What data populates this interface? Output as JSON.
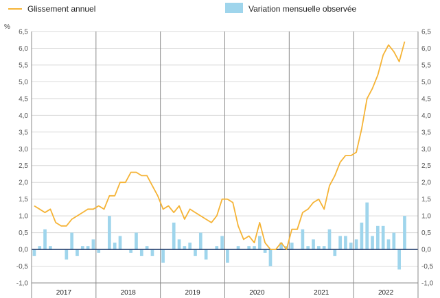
{
  "chart_data": {
    "type": "bar+line",
    "unit_label": "%",
    "colors": {
      "line": "#f5b335",
      "bars": "#9fd5ec",
      "zero_line": "#1f3b6b",
      "grid": "#d9d9d9",
      "axis": "#888888"
    },
    "legend": {
      "placement": "top",
      "line_label": "Glissement annuel",
      "bar_label": "Variation mensuelle observée"
    },
    "ylim": [
      -1.0,
      6.5
    ],
    "yticks": [
      "-1,0",
      "-0,5",
      "0,0",
      "0,5",
      "1,0",
      "1,5",
      "2,0",
      "2,5",
      "3,0",
      "3,5",
      "4,0",
      "4,5",
      "5,0",
      "5,5",
      "6,0",
      "6,5"
    ],
    "years": [
      "2017",
      "2018",
      "2019",
      "2020",
      "2021",
      "2022"
    ],
    "months_per_year": 12,
    "series": [
      {
        "name": "Glissement annuel",
        "kind": "line",
        "values": [
          1.3,
          1.2,
          1.1,
          1.2,
          0.8,
          0.7,
          0.7,
          0.9,
          1.0,
          1.1,
          1.2,
          1.2,
          1.3,
          1.2,
          1.6,
          1.6,
          2.0,
          2.0,
          2.3,
          2.3,
          2.2,
          2.2,
          1.9,
          1.6,
          1.2,
          1.3,
          1.1,
          1.3,
          0.9,
          1.2,
          1.1,
          1.0,
          0.9,
          0.8,
          1.0,
          1.5,
          1.5,
          1.4,
          0.7,
          0.3,
          0.4,
          0.2,
          0.8,
          0.2,
          0.0,
          0.0,
          0.2,
          0.0,
          0.6,
          0.6,
          1.1,
          1.2,
          1.4,
          1.5,
          1.2,
          1.9,
          2.2,
          2.6,
          2.8,
          2.8,
          2.9,
          3.6,
          4.5,
          4.8,
          5.2,
          5.8,
          6.1,
          5.9,
          5.6,
          6.2
        ]
      },
      {
        "name": "Variation mensuelle observée",
        "kind": "bar",
        "values": [
          -0.2,
          0.1,
          0.6,
          0.1,
          0.0,
          0.0,
          -0.3,
          0.5,
          -0.2,
          0.1,
          0.1,
          0.3,
          -0.1,
          0.0,
          1.0,
          0.2,
          0.4,
          0.0,
          -0.1,
          0.5,
          -0.2,
          0.1,
          -0.2,
          0.0,
          -0.4,
          0.0,
          0.8,
          0.3,
          0.1,
          0.2,
          -0.2,
          0.5,
          -0.3,
          0.0,
          0.1,
          0.4,
          -0.4,
          0.0,
          0.1,
          0.0,
          0.1,
          0.1,
          0.4,
          -0.1,
          -0.5,
          0.0,
          0.2,
          0.1,
          0.2,
          0.0,
          0.6,
          0.1,
          0.3,
          0.1,
          0.1,
          0.6,
          -0.2,
          0.4,
          0.4,
          0.2,
          0.3,
          0.8,
          1.4,
          0.4,
          0.7,
          0.7,
          0.3,
          0.5,
          -0.6,
          1.0
        ]
      }
    ]
  }
}
